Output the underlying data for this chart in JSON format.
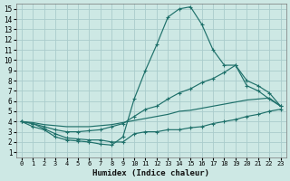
{
  "xlabel": "Humidex (Indice chaleur)",
  "xlim": [
    -0.5,
    23.5
  ],
  "ylim": [
    0.5,
    15.5
  ],
  "xticks": [
    0,
    1,
    2,
    3,
    4,
    5,
    6,
    7,
    8,
    9,
    10,
    11,
    12,
    13,
    14,
    15,
    16,
    17,
    18,
    19,
    20,
    21,
    22,
    23
  ],
  "yticks": [
    1,
    2,
    3,
    4,
    5,
    6,
    7,
    8,
    9,
    10,
    11,
    12,
    13,
    14,
    15
  ],
  "bg_color": "#cde8e4",
  "grid_color": "#aacccc",
  "line_color": "#1e706a",
  "line1_x": [
    0,
    1,
    2,
    3,
    4,
    5,
    6,
    7,
    8,
    9,
    10,
    11,
    12,
    13,
    14,
    15,
    16,
    17,
    18,
    19,
    20,
    21,
    22,
    23
  ],
  "line1_y": [
    4.0,
    3.5,
    3.2,
    2.5,
    2.2,
    2.1,
    2.0,
    1.8,
    1.7,
    2.5,
    6.2,
    9.0,
    11.5,
    14.2,
    15.0,
    15.2,
    13.5,
    11.0,
    9.5,
    9.5,
    7.5,
    7.0,
    6.2,
    5.5
  ],
  "line2_x": [
    0,
    1,
    2,
    3,
    4,
    5,
    6,
    7,
    8,
    9,
    10,
    11,
    12,
    13,
    14,
    15,
    16,
    17,
    18,
    19,
    20,
    21,
    22,
    23
  ],
  "line2_y": [
    4.0,
    3.8,
    3.5,
    3.2,
    3.0,
    3.0,
    3.1,
    3.2,
    3.5,
    3.8,
    4.5,
    5.2,
    5.5,
    6.2,
    6.8,
    7.2,
    7.8,
    8.2,
    8.8,
    9.5,
    8.0,
    7.5,
    6.8,
    5.5
  ],
  "line3_x": [
    0,
    1,
    2,
    3,
    4,
    5,
    6,
    7,
    8,
    9,
    10,
    11,
    12,
    13,
    14,
    15,
    16,
    17,
    18,
    19,
    20,
    21,
    22,
    23
  ],
  "line3_y": [
    4.0,
    3.9,
    3.7,
    3.6,
    3.5,
    3.5,
    3.5,
    3.6,
    3.7,
    3.9,
    4.1,
    4.3,
    4.5,
    4.7,
    5.0,
    5.1,
    5.3,
    5.5,
    5.7,
    5.9,
    6.1,
    6.2,
    6.3,
    5.5
  ],
  "line4_x": [
    0,
    1,
    2,
    3,
    4,
    5,
    6,
    7,
    8,
    9,
    10,
    11,
    12,
    13,
    14,
    15,
    16,
    17,
    18,
    19,
    20,
    21,
    22,
    23
  ],
  "line4_y": [
    4.0,
    3.8,
    3.3,
    2.8,
    2.4,
    2.3,
    2.2,
    2.2,
    2.0,
    2.0,
    2.8,
    3.0,
    3.0,
    3.2,
    3.2,
    3.4,
    3.5,
    3.8,
    4.0,
    4.2,
    4.5,
    4.7,
    5.0,
    5.2
  ]
}
